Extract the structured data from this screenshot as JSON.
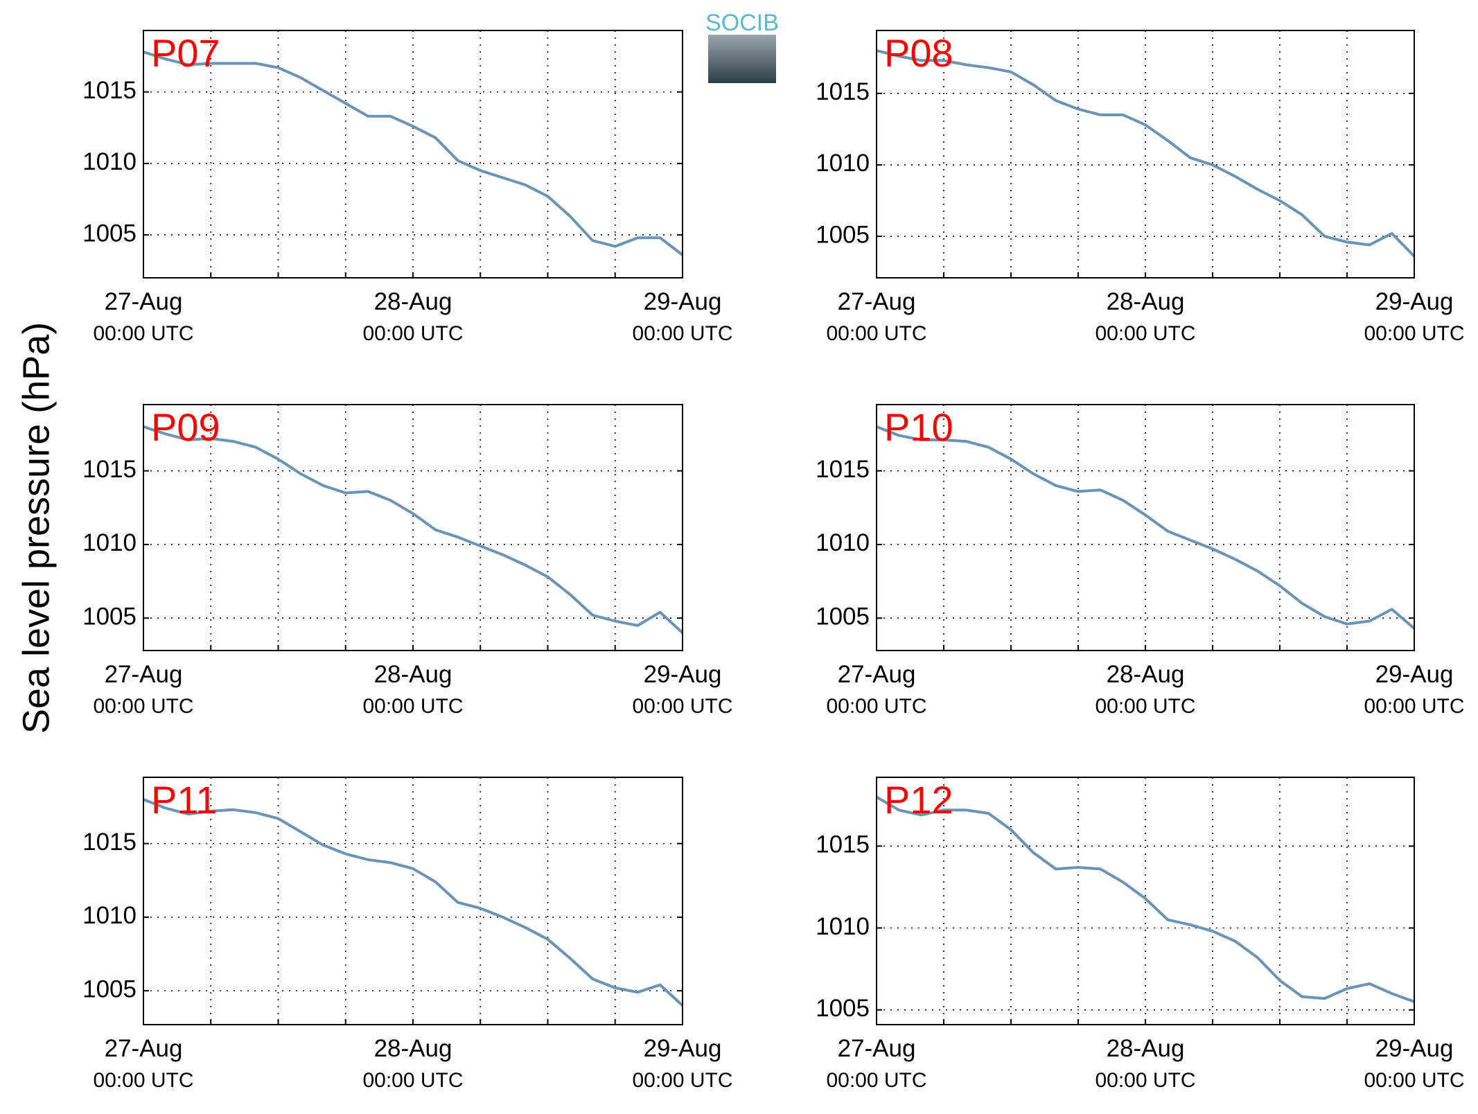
{
  "ylabel": "Sea level pressure (hPa)",
  "logo": "SOCIB",
  "chart_data": [
    {
      "type": "line",
      "title": "P07",
      "color": "#6a93b5",
      "grid": true,
      "x": [
        0,
        2,
        4,
        6,
        8,
        10,
        12,
        14,
        16,
        18,
        20,
        22,
        24,
        26,
        28,
        30,
        32,
        34,
        36,
        38,
        40,
        42,
        44,
        46,
        48
      ],
      "values": [
        1017.8,
        1017.3,
        1016.9,
        1017.0,
        1017.0,
        1017.0,
        1016.7,
        1016.0,
        1015.1,
        1014.2,
        1013.3,
        1013.3,
        1012.6,
        1011.8,
        1010.2,
        1009.5,
        1009.0,
        1008.5,
        1007.7,
        1006.3,
        1004.6,
        1004.2,
        1004.8,
        1004.8,
        1003.6
      ],
      "xlim": [
        0,
        48
      ],
      "xticks": [
        {
          "value": 0,
          "label": "27-Aug 00:00 UTC"
        },
        {
          "value": 6,
          "label": null
        },
        {
          "value": 12,
          "label": null
        },
        {
          "value": 18,
          "label": null
        },
        {
          "value": 24,
          "label": "28-Aug 00:00 UTC"
        },
        {
          "value": 30,
          "label": null
        },
        {
          "value": 36,
          "label": null
        },
        {
          "value": 42,
          "label": null
        },
        {
          "value": 48,
          "label": "29-Aug 00:00 UTC"
        }
      ],
      "ylim": [
        1002.0,
        1019.3
      ],
      "yticks": [
        1005,
        1010,
        1015
      ]
    },
    {
      "type": "line",
      "title": "P08",
      "color": "#6a93b5",
      "grid": true,
      "x": [
        0,
        2,
        4,
        6,
        8,
        10,
        12,
        14,
        16,
        18,
        20,
        22,
        24,
        26,
        28,
        30,
        32,
        34,
        36,
        38,
        40,
        42,
        44,
        46,
        48
      ],
      "values": [
        1018.0,
        1017.6,
        1017.3,
        1017.3,
        1017.0,
        1016.8,
        1016.5,
        1015.6,
        1014.5,
        1013.9,
        1013.5,
        1013.5,
        1012.8,
        1011.7,
        1010.5,
        1010.0,
        1009.2,
        1008.3,
        1007.5,
        1006.5,
        1005.0,
        1004.6,
        1004.4,
        1005.2,
        1003.6
      ],
      "xlim": [
        0,
        48
      ],
      "xticks": [
        {
          "value": 0,
          "label": "27-Aug 00:00 UTC"
        },
        {
          "value": 6,
          "label": null
        },
        {
          "value": 12,
          "label": null
        },
        {
          "value": 18,
          "label": null
        },
        {
          "value": 24,
          "label": "28-Aug 00:00 UTC"
        },
        {
          "value": 30,
          "label": null
        },
        {
          "value": 36,
          "label": null
        },
        {
          "value": 42,
          "label": null
        },
        {
          "value": 48,
          "label": "29-Aug 00:00 UTC"
        }
      ],
      "ylim": [
        1002.1,
        1019.4
      ],
      "yticks": [
        1005,
        1010,
        1015
      ]
    },
    {
      "type": "line",
      "title": "P09",
      "color": "#6a93b5",
      "grid": true,
      "x": [
        0,
        2,
        4,
        6,
        8,
        10,
        12,
        14,
        16,
        18,
        20,
        22,
        24,
        26,
        28,
        30,
        32,
        34,
        36,
        38,
        40,
        42,
        44,
        46,
        48
      ],
      "values": [
        1018.0,
        1017.5,
        1017.1,
        1017.2,
        1017.0,
        1016.6,
        1015.8,
        1014.8,
        1014.0,
        1013.5,
        1013.6,
        1013.0,
        1012.1,
        1011.0,
        1010.5,
        1009.9,
        1009.3,
        1008.6,
        1007.8,
        1006.6,
        1005.2,
        1004.8,
        1004.5,
        1005.4,
        1004.0
      ],
      "xlim": [
        0,
        48
      ],
      "xticks": [
        {
          "value": 0,
          "label": "27-Aug 00:00 UTC"
        },
        {
          "value": 6,
          "label": null
        },
        {
          "value": 12,
          "label": null
        },
        {
          "value": 18,
          "label": null
        },
        {
          "value": 24,
          "label": "28-Aug 00:00 UTC"
        },
        {
          "value": 30,
          "label": null
        },
        {
          "value": 36,
          "label": null
        },
        {
          "value": 42,
          "label": null
        },
        {
          "value": 48,
          "label": "29-Aug 00:00 UTC"
        }
      ],
      "ylim": [
        1002.8,
        1019.5
      ],
      "yticks": [
        1005,
        1010,
        1015
      ]
    },
    {
      "type": "line",
      "title": "P10",
      "color": "#6a93b5",
      "grid": true,
      "x": [
        0,
        2,
        4,
        6,
        8,
        10,
        12,
        14,
        16,
        18,
        20,
        22,
        24,
        26,
        28,
        30,
        32,
        34,
        36,
        38,
        40,
        42,
        44,
        46,
        48
      ],
      "values": [
        1018.0,
        1017.4,
        1017.1,
        1017.1,
        1017.0,
        1016.6,
        1015.8,
        1014.8,
        1014.0,
        1013.6,
        1013.7,
        1013.0,
        1012.0,
        1010.9,
        1010.3,
        1009.7,
        1009.0,
        1008.2,
        1007.2,
        1006.0,
        1005.1,
        1004.6,
        1004.8,
        1005.6,
        1004.3
      ],
      "xlim": [
        0,
        48
      ],
      "xticks": [
        {
          "value": 0,
          "label": "27-Aug 00:00 UTC"
        },
        {
          "value": 6,
          "label": null
        },
        {
          "value": 12,
          "label": null
        },
        {
          "value": 18,
          "label": null
        },
        {
          "value": 24,
          "label": "28-Aug 00:00 UTC"
        },
        {
          "value": 30,
          "label": null
        },
        {
          "value": 36,
          "label": null
        },
        {
          "value": 42,
          "label": null
        },
        {
          "value": 48,
          "label": "29-Aug 00:00 UTC"
        }
      ],
      "ylim": [
        1002.8,
        1019.5
      ],
      "yticks": [
        1005,
        1010,
        1015
      ]
    },
    {
      "type": "line",
      "title": "P11",
      "color": "#6a93b5",
      "grid": true,
      "x": [
        0,
        2,
        4,
        6,
        8,
        10,
        12,
        14,
        16,
        18,
        20,
        22,
        24,
        26,
        28,
        30,
        32,
        34,
        36,
        38,
        40,
        42,
        44,
        46,
        48
      ],
      "values": [
        1018.0,
        1017.4,
        1017.0,
        1017.2,
        1017.3,
        1017.1,
        1016.7,
        1015.8,
        1014.9,
        1014.3,
        1013.9,
        1013.7,
        1013.3,
        1012.4,
        1011.0,
        1010.6,
        1010.0,
        1009.3,
        1008.5,
        1007.2,
        1005.8,
        1005.2,
        1004.9,
        1005.4,
        1004.0
      ],
      "xlim": [
        0,
        48
      ],
      "xticks": [
        {
          "value": 0,
          "label": "27-Aug 00:00 UTC"
        },
        {
          "value": 6,
          "label": null
        },
        {
          "value": 12,
          "label": null
        },
        {
          "value": 18,
          "label": null
        },
        {
          "value": 24,
          "label": "28-Aug 00:00 UTC"
        },
        {
          "value": 30,
          "label": null
        },
        {
          "value": 36,
          "label": null
        },
        {
          "value": 42,
          "label": null
        },
        {
          "value": 48,
          "label": "29-Aug 00:00 UTC"
        }
      ],
      "ylim": [
        1002.7,
        1019.5
      ],
      "yticks": [
        1005,
        1010,
        1015
      ]
    },
    {
      "type": "line",
      "title": "P12",
      "color": "#6a93b5",
      "grid": true,
      "x": [
        0,
        2,
        4,
        6,
        8,
        10,
        12,
        14,
        16,
        18,
        20,
        22,
        24,
        26,
        28,
        30,
        32,
        34,
        36,
        38,
        40,
        42,
        44,
        46,
        48
      ],
      "values": [
        1018.0,
        1017.2,
        1016.9,
        1017.2,
        1017.2,
        1017.0,
        1016.0,
        1014.6,
        1013.6,
        1013.7,
        1013.6,
        1012.8,
        1011.8,
        1010.5,
        1010.2,
        1009.8,
        1009.2,
        1008.2,
        1006.8,
        1005.8,
        1005.7,
        1006.3,
        1006.6,
        1006.0,
        1005.5
      ],
      "xlim": [
        0,
        48
      ],
      "xticks": [
        {
          "value": 0,
          "label": "27-Aug 00:00 UTC"
        },
        {
          "value": 6,
          "label": null
        },
        {
          "value": 12,
          "label": null
        },
        {
          "value": 18,
          "label": null
        },
        {
          "value": 24,
          "label": "28-Aug 00:00 UTC"
        },
        {
          "value": 30,
          "label": null
        },
        {
          "value": 36,
          "label": null
        },
        {
          "value": 42,
          "label": null
        },
        {
          "value": 48,
          "label": "29-Aug 00:00 UTC"
        }
      ],
      "ylim": [
        1004.1,
        1019.2
      ],
      "yticks": [
        1005,
        1010,
        1015
      ]
    }
  ]
}
